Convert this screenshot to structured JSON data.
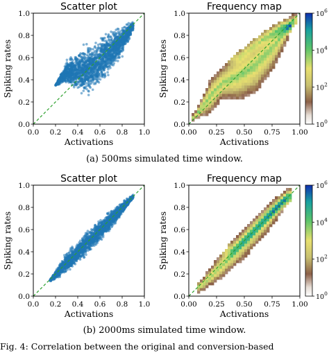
{
  "colors": {
    "scatter": "#1f77b4",
    "diagonal": "#2ca02c"
  },
  "captions": {
    "a": "(a) 500ms simulated time window.",
    "b": "(b) 2000ms simulated time window."
  },
  "body_text": "Fig. 4: Correlation between the original and conversion-based",
  "chart_data": [
    {
      "id": "a-scatter",
      "type": "scatter",
      "title": "Scatter plot",
      "xlabel": "Activations",
      "ylabel": "Spiking rates",
      "xlim": [
        0,
        1
      ],
      "ylim": [
        0,
        1
      ],
      "xticks": [
        "0.0",
        "0.2",
        "0.4",
        "0.6",
        "0.8",
        "1.0"
      ],
      "yticks": [
        "0.0",
        "0.2",
        "0.4",
        "0.6",
        "0.8",
        "1.0"
      ],
      "diagonal": true,
      "cloud": {
        "x_range": [
          0.2,
          0.9
        ],
        "upper_envelope": [
          [
            0.2,
            0.35
          ],
          [
            0.3,
            0.58
          ],
          [
            0.4,
            0.68
          ],
          [
            0.5,
            0.74
          ],
          [
            0.6,
            0.8
          ],
          [
            0.7,
            0.86
          ],
          [
            0.8,
            0.9
          ],
          [
            0.9,
            0.93
          ]
        ],
        "lower_envelope": [
          [
            0.2,
            0.35
          ],
          [
            0.3,
            0.36
          ],
          [
            0.4,
            0.26
          ],
          [
            0.5,
            0.24
          ],
          [
            0.6,
            0.32
          ],
          [
            0.7,
            0.45
          ],
          [
            0.8,
            0.6
          ],
          [
            0.9,
            0.85
          ]
        ]
      }
    },
    {
      "id": "a-freq",
      "type": "heatmap",
      "title": "Frequency map",
      "xlabel": "Activations",
      "ylabel": "Spiking rates",
      "xlim": [
        0,
        1
      ],
      "ylim": [
        0,
        1
      ],
      "xticks": [
        "0.00",
        "0.25",
        "0.50",
        "0.75",
        "1.00"
      ],
      "yticks": [
        "0.0",
        "0.2",
        "0.4",
        "0.6",
        "0.8",
        "1.0"
      ],
      "colorbar": {
        "scale": "log",
        "ticks": [
          {
            "base": "10",
            "exp": "0"
          },
          {
            "base": "10",
            "exp": "2"
          },
          {
            "base": "10",
            "exp": "4"
          },
          {
            "base": "10",
            "exp": "6"
          }
        ]
      },
      "diagonal": true,
      "density": {
        "upper_envelope": [
          [
            0.05,
            0.08
          ],
          [
            0.2,
            0.4
          ],
          [
            0.35,
            0.55
          ],
          [
            0.5,
            0.68
          ],
          [
            0.65,
            0.8
          ],
          [
            0.8,
            0.9
          ],
          [
            0.95,
            0.98
          ]
        ],
        "lower_envelope": [
          [
            0.05,
            0.05
          ],
          [
            0.2,
            0.12
          ],
          [
            0.3,
            0.25
          ],
          [
            0.45,
            0.23
          ],
          [
            0.6,
            0.3
          ],
          [
            0.75,
            0.5
          ],
          [
            0.9,
            0.8
          ],
          [
            0.95,
            0.92
          ]
        ],
        "peak_ridge": [
          [
            0.45,
            0.6
          ],
          [
            0.55,
            0.68
          ],
          [
            0.65,
            0.76
          ],
          [
            0.75,
            0.82
          ],
          [
            0.85,
            0.88
          ]
        ]
      }
    },
    {
      "id": "b-scatter",
      "type": "scatter",
      "title": "Scatter plot",
      "xlabel": "Activations",
      "ylabel": "Spiking rates",
      "xlim": [
        0,
        1
      ],
      "ylim": [
        0,
        1
      ],
      "xticks": [
        "0.0",
        "0.2",
        "0.4",
        "0.6",
        "0.8",
        "1.0"
      ],
      "yticks": [
        "0.0",
        "0.2",
        "0.4",
        "0.6",
        "0.8",
        "1.0"
      ],
      "diagonal": true,
      "cloud": {
        "x_range": [
          0.15,
          0.9
        ],
        "upper_envelope": [
          [
            0.15,
            0.15
          ],
          [
            0.3,
            0.4
          ],
          [
            0.45,
            0.56
          ],
          [
            0.6,
            0.7
          ],
          [
            0.75,
            0.82
          ],
          [
            0.9,
            0.92
          ]
        ],
        "lower_envelope": [
          [
            0.15,
            0.13
          ],
          [
            0.3,
            0.2
          ],
          [
            0.45,
            0.33
          ],
          [
            0.6,
            0.48
          ],
          [
            0.75,
            0.66
          ],
          [
            0.9,
            0.88
          ]
        ]
      }
    },
    {
      "id": "b-freq",
      "type": "heatmap",
      "title": "Frequency map",
      "xlabel": "Activations",
      "ylabel": "Spiking rates",
      "xlim": [
        0,
        1
      ],
      "ylim": [
        0,
        1
      ],
      "xticks": [
        "0.00",
        "0.25",
        "0.50",
        "0.75",
        "1.00"
      ],
      "yticks": [
        "0.0",
        "0.2",
        "0.4",
        "0.6",
        "0.8",
        "1.0"
      ],
      "colorbar": {
        "scale": "log",
        "ticks": [
          {
            "base": "10",
            "exp": "0"
          },
          {
            "base": "10",
            "exp": "2"
          },
          {
            "base": "10",
            "exp": "4"
          },
          {
            "base": "10",
            "exp": "6"
          }
        ]
      },
      "diagonal": true,
      "density": {
        "upper_envelope": [
          [
            0.1,
            0.12
          ],
          [
            0.3,
            0.38
          ],
          [
            0.5,
            0.6
          ],
          [
            0.7,
            0.8
          ],
          [
            0.9,
            0.97
          ]
        ],
        "lower_envelope": [
          [
            0.1,
            0.05
          ],
          [
            0.3,
            0.18
          ],
          [
            0.5,
            0.36
          ],
          [
            0.7,
            0.58
          ],
          [
            0.9,
            0.86
          ]
        ],
        "peak_ridge": [
          [
            0.4,
            0.42
          ],
          [
            0.55,
            0.56
          ],
          [
            0.7,
            0.72
          ],
          [
            0.85,
            0.86
          ]
        ]
      }
    }
  ]
}
